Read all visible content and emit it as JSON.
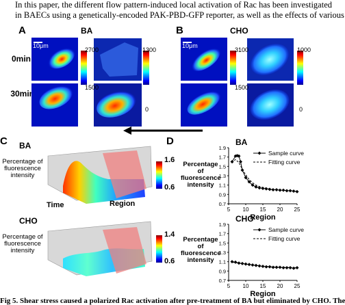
{
  "header_text": {
    "line1": "In this paper, the different flow pattern-induced local activation of Rac has been investigated",
    "line2": "in BAECs using a genetically-encoded PAK-PBD-GFP reporter, as well as the effects of various"
  },
  "panel_labels": {
    "a": "A",
    "b": "B",
    "c": "C",
    "d": "D"
  },
  "panel_a": {
    "condition": "BA",
    "scale_bar": "10μm",
    "time_labels": [
      "0min",
      "30min"
    ],
    "cbar_top_left": {
      "max": "2700",
      "min": "1500"
    },
    "cbar_top_right": {
      "max": "1300",
      "min": "0"
    }
  },
  "panel_b": {
    "condition": "CHO",
    "scale_bar": "10μm",
    "cbar_top_left": {
      "max": "3100",
      "min": "1500"
    },
    "cbar_top_right": {
      "max": "1000",
      "min": "0"
    }
  },
  "panel_c": {
    "ylabel": [
      "Percentage of",
      "fluorescence",
      "intensity"
    ],
    "xlabel_time": "Time",
    "xlabel_region": "Region",
    "top": {
      "condition": "BA",
      "cbar_max": "1.6",
      "cbar_min": "0.6"
    },
    "bottom": {
      "condition": "CHO",
      "cbar_max": "1.4",
      "cbar_min": "0.6"
    }
  },
  "panel_d": {
    "ylabel": [
      "Percentage of",
      "fluorescence",
      "intensity"
    ],
    "legend_sample": "Sample curve",
    "legend_fit": "Fitting curve",
    "xlabel": "Region"
  },
  "caption_text": "Fig 5. Shear stress caused a polarized Rac activation after pre-treatment of BA but eliminated by CHO. The",
  "colors": {
    "jet_dark": "#00008f",
    "jet_blue": "#0000ff",
    "jet_cyan": "#00ffff",
    "jet_yellow": "#ffff00",
    "jet_red": "#ff0000",
    "jet_darkred": "#800000",
    "fit_line": "#000000"
  },
  "chart_data": [
    {
      "type": "line",
      "title": "BA",
      "ylabel": "Percentage of fluorescence intensity",
      "xlabel": "Region",
      "xlim": [
        5,
        25
      ],
      "ylim": [
        0.7,
        1.9
      ],
      "xticks": [
        5,
        10,
        15,
        20,
        25
      ],
      "yticks": [
        0.7,
        0.9,
        1.1,
        1.3,
        1.5,
        1.7,
        1.9
      ],
      "legend": "top-right",
      "series": [
        {
          "name": "Sample curve",
          "x": [
            6,
            7,
            7.5,
            8,
            8.5,
            9,
            10,
            11,
            12,
            13,
            14,
            15,
            16,
            17,
            18,
            19,
            20,
            21,
            22,
            23,
            24,
            25
          ],
          "y": [
            1.6,
            1.72,
            1.73,
            1.72,
            1.6,
            1.42,
            1.26,
            1.17,
            1.1,
            1.06,
            1.04,
            1.03,
            1.02,
            1.01,
            1.0,
            1.0,
            0.99,
            0.99,
            0.98,
            0.98,
            0.97,
            0.96
          ]
        },
        {
          "name": "Fitting curve",
          "x": [
            6,
            7,
            8,
            9,
            10,
            11,
            12,
            13,
            14,
            15,
            17,
            19,
            21,
            23,
            25
          ],
          "y": [
            1.57,
            1.65,
            1.58,
            1.44,
            1.32,
            1.22,
            1.15,
            1.1,
            1.07,
            1.05,
            1.02,
            1.0,
            0.99,
            0.98,
            0.97
          ]
        }
      ]
    },
    {
      "type": "line",
      "title": "CHO",
      "ylabel": "Percentage of fluorescence intensity",
      "xlabel": "Region",
      "xlim": [
        5,
        25
      ],
      "ylim": [
        0.7,
        1.9
      ],
      "xticks": [
        5,
        10,
        15,
        20,
        25
      ],
      "yticks": [
        0.7,
        0.9,
        1.1,
        1.3,
        1.5,
        1.7,
        1.9
      ],
      "legend": "top-right",
      "series": [
        {
          "name": "Sample curve",
          "x": [
            6,
            7,
            8,
            9,
            10,
            11,
            12,
            13,
            14,
            15,
            16,
            17,
            18,
            19,
            20,
            21,
            22,
            23,
            24,
            25
          ],
          "y": [
            1.1,
            1.09,
            1.07,
            1.06,
            1.05,
            1.04,
            1.03,
            1.02,
            1.01,
            1.0,
            0.99,
            0.99,
            0.98,
            0.98,
            0.98,
            0.97,
            0.97,
            0.97,
            0.96,
            0.97
          ]
        },
        {
          "name": "Fitting curve",
          "x": [
            6,
            8,
            10,
            12,
            14,
            16,
            18,
            20,
            22,
            25
          ],
          "y": [
            1.09,
            1.07,
            1.05,
            1.03,
            1.01,
            1.0,
            0.99,
            0.98,
            0.98,
            0.97
          ]
        }
      ]
    }
  ]
}
